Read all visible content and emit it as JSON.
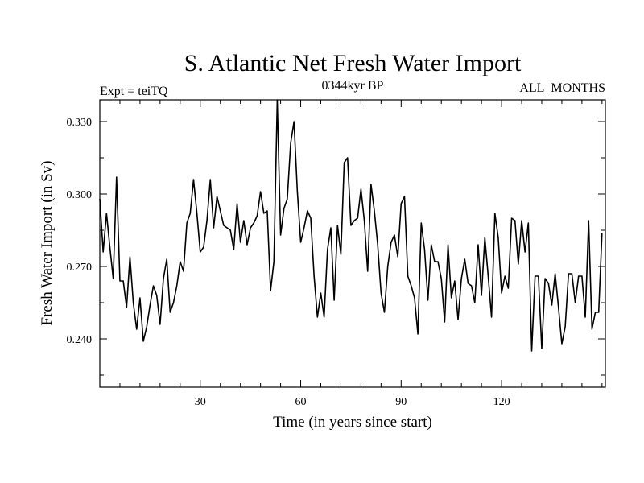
{
  "chart_data": {
    "type": "line",
    "title": "S. Atlantic Net Fresh Water Import",
    "subtitle_left": "Expt = teiTQ",
    "subtitle_center": "0344kyr BP",
    "subtitle_right": "ALL_MONTHS",
    "xlabel": "Time (in years since start)",
    "ylabel": "Fresh Water Import (in Sv)",
    "xlim": [
      0,
      151
    ],
    "ylim": [
      0.22,
      0.339
    ],
    "xticks": [
      30,
      60,
      90,
      120
    ],
    "xtick_labels": [
      "30",
      "60",
      "90",
      "120"
    ],
    "yticks": [
      0.24,
      0.27,
      0.3,
      0.33
    ],
    "ytick_labels": [
      "0.240",
      "0.270",
      "0.300",
      "0.330"
    ],
    "series": [
      {
        "name": "Fresh Water Import",
        "color": "#000000",
        "x": [
          0,
          1,
          2,
          3,
          4,
          5,
          6,
          7,
          8,
          9,
          10,
          11,
          12,
          13,
          14,
          15,
          16,
          17,
          18,
          19,
          20,
          21,
          22,
          23,
          24,
          25,
          26,
          27,
          28,
          29,
          30,
          31,
          32,
          33,
          34,
          35,
          36,
          37,
          38,
          39,
          40,
          41,
          42,
          43,
          44,
          45,
          46,
          47,
          48,
          49,
          50,
          51,
          52,
          53,
          54,
          55,
          56,
          57,
          58,
          59,
          60,
          61,
          62,
          63,
          64,
          65,
          66,
          67,
          68,
          69,
          70,
          71,
          72,
          73,
          74,
          75,
          76,
          77,
          78,
          79,
          80,
          81,
          82,
          83,
          84,
          85,
          86,
          87,
          88,
          89,
          90,
          91,
          92,
          93,
          94,
          95,
          96,
          97,
          98,
          99,
          100,
          101,
          102,
          103,
          104,
          105,
          106,
          107,
          108,
          109,
          110,
          111,
          112,
          113,
          114,
          115,
          116,
          117,
          118,
          119,
          120,
          121,
          122,
          123,
          124,
          125,
          126,
          127,
          128,
          129,
          130,
          131,
          132,
          133,
          134,
          135,
          136,
          137,
          138,
          139,
          140,
          141,
          142,
          143,
          144,
          145,
          146,
          147,
          148,
          149,
          150
        ],
        "values": [
          0.298,
          0.276,
          0.292,
          0.278,
          0.265,
          0.307,
          0.264,
          0.264,
          0.253,
          0.274,
          0.255,
          0.244,
          0.257,
          0.239,
          0.245,
          0.254,
          0.262,
          0.258,
          0.246,
          0.265,
          0.273,
          0.251,
          0.255,
          0.262,
          0.272,
          0.268,
          0.288,
          0.292,
          0.306,
          0.292,
          0.276,
          0.278,
          0.289,
          0.306,
          0.286,
          0.299,
          0.293,
          0.287,
          0.286,
          0.285,
          0.277,
          0.296,
          0.28,
          0.289,
          0.279,
          0.286,
          0.288,
          0.291,
          0.301,
          0.292,
          0.293,
          0.26,
          0.272,
          0.339,
          0.283,
          0.294,
          0.298,
          0.321,
          0.33,
          0.301,
          0.28,
          0.286,
          0.293,
          0.29,
          0.266,
          0.249,
          0.259,
          0.249,
          0.277,
          0.286,
          0.256,
          0.287,
          0.275,
          0.313,
          0.315,
          0.287,
          0.289,
          0.29,
          0.302,
          0.289,
          0.268,
          0.304,
          0.293,
          0.279,
          0.259,
          0.251,
          0.27,
          0.28,
          0.283,
          0.274,
          0.296,
          0.299,
          0.266,
          0.262,
          0.257,
          0.242,
          0.288,
          0.277,
          0.256,
          0.279,
          0.272,
          0.272,
          0.265,
          0.247,
          0.279,
          0.257,
          0.264,
          0.248,
          0.265,
          0.273,
          0.263,
          0.262,
          0.255,
          0.279,
          0.258,
          0.282,
          0.266,
          0.249,
          0.292,
          0.282,
          0.259,
          0.266,
          0.261,
          0.29,
          0.289,
          0.271,
          0.289,
          0.276,
          0.288,
          0.235,
          0.266,
          0.266,
          0.236,
          0.265,
          0.263,
          0.254,
          0.267,
          0.253,
          0.238,
          0.245,
          0.267,
          0.267,
          0.255,
          0.266,
          0.266,
          0.249,
          0.289,
          0.244,
          0.251,
          0.251,
          0.284
        ]
      }
    ]
  }
}
